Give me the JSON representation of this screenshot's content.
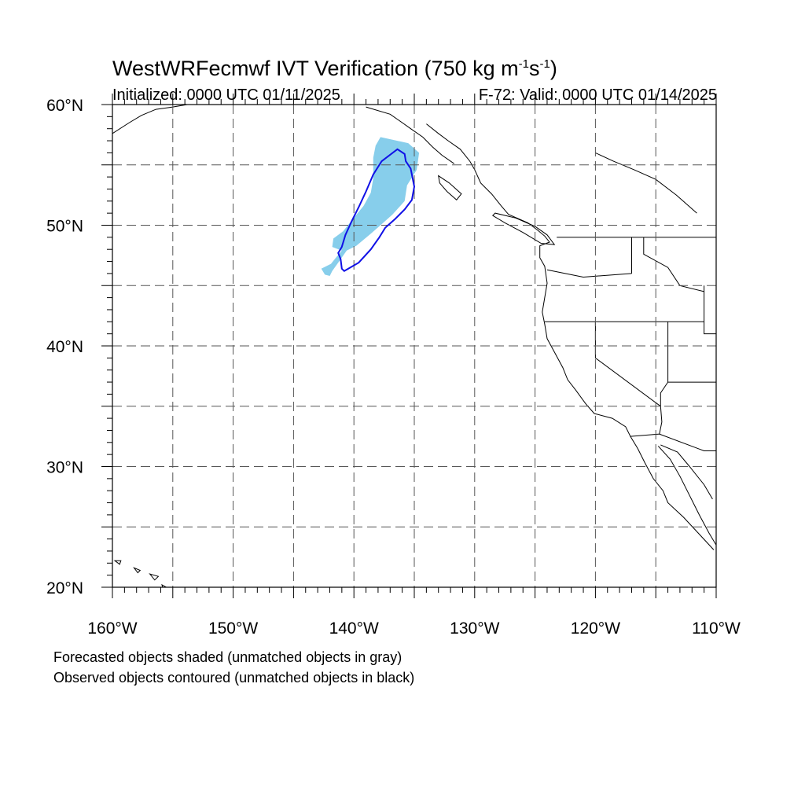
{
  "title": {
    "main": "WestWRFecmwf IVT Verification (750 kg m",
    "sup1": "-1",
    "mid": "s",
    "sup2": "-1",
    "end": ")"
  },
  "subtitle_left": "Initialized: 0000 UTC 01/11/2025",
  "subtitle_right": "F-72: Valid: 0000 UTC 01/14/2025",
  "map": {
    "lon_range": [
      -160,
      -110
    ],
    "lat_range": [
      20,
      60
    ],
    "grid_lon_step": 5,
    "grid_lat_step": 5,
    "grid": "dashed",
    "x_ticks": [
      {
        "value": -160,
        "label": "160°W"
      },
      {
        "value": -150,
        "label": "150°W"
      },
      {
        "value": -140,
        "label": "140°W"
      },
      {
        "value": -130,
        "label": "130°W"
      },
      {
        "value": -120,
        "label": "120°W"
      },
      {
        "value": -110,
        "label": "110°W"
      }
    ],
    "y_ticks": [
      {
        "value": 60,
        "label": "60°N"
      },
      {
        "value": 50,
        "label": "50°N"
      },
      {
        "value": 40,
        "label": "40°N"
      },
      {
        "value": 30,
        "label": "30°N"
      },
      {
        "value": 20,
        "label": "20°N"
      }
    ],
    "forecast_color": "#87ceeb",
    "observed_color": "#1010e6",
    "forecast_object": [
      [
        -137.8,
        57.3
      ],
      [
        -135.5,
        56.8
      ],
      [
        -134.6,
        56.0
      ],
      [
        -134.8,
        54.6
      ],
      [
        -135.6,
        53.3
      ],
      [
        -135.8,
        52.0
      ],
      [
        -136.8,
        50.9
      ],
      [
        -137.8,
        50.0
      ],
      [
        -138.6,
        49.3
      ],
      [
        -139.8,
        48.3
      ],
      [
        -140.6,
        47.9
      ],
      [
        -141.3,
        46.9
      ],
      [
        -141.8,
        46.2
      ],
      [
        -142.0,
        45.8
      ],
      [
        -142.4,
        45.9
      ],
      [
        -142.7,
        46.4
      ],
      [
        -141.9,
        46.8
      ],
      [
        -141.5,
        47.3
      ],
      [
        -141.0,
        47.9
      ],
      [
        -141.8,
        48.2
      ],
      [
        -141.7,
        48.9
      ],
      [
        -140.9,
        49.5
      ],
      [
        -140.1,
        50.5
      ],
      [
        -139.2,
        51.6
      ],
      [
        -138.6,
        52.7
      ],
      [
        -138.4,
        53.9
      ],
      [
        -138.4,
        55.6
      ],
      [
        -138.2,
        56.6
      ]
    ],
    "observed_object": [
      [
        -136.4,
        56.3
      ],
      [
        -135.8,
        55.9
      ],
      [
        -135.7,
        55.3
      ],
      [
        -135.3,
        54.7
      ],
      [
        -135.0,
        53.2
      ],
      [
        -135.2,
        52.1
      ],
      [
        -135.8,
        51.3
      ],
      [
        -136.6,
        50.5
      ],
      [
        -137.4,
        49.8
      ],
      [
        -137.9,
        49.0
      ],
      [
        -138.6,
        48.0
      ],
      [
        -139.6,
        46.9
      ],
      [
        -140.8,
        46.2
      ],
      [
        -141.0,
        46.4
      ],
      [
        -141.1,
        47.2
      ],
      [
        -141.3,
        47.7
      ],
      [
        -141.0,
        48.2
      ],
      [
        -140.7,
        49.2
      ],
      [
        -140.2,
        50.3
      ],
      [
        -139.6,
        51.5
      ],
      [
        -139.0,
        52.8
      ],
      [
        -138.4,
        54.2
      ],
      [
        -137.7,
        55.3
      ]
    ],
    "land_outlines": {
      "west_coast": [
        [
          -134.0,
          58.4
        ],
        [
          -133.0,
          57.6
        ],
        [
          -132.2,
          57.0
        ],
        [
          -131.2,
          56.3
        ],
        [
          -130.4,
          55.3
        ],
        [
          -130.0,
          54.6
        ],
        [
          -129.5,
          53.5
        ],
        [
          -128.6,
          52.6
        ],
        [
          -127.8,
          51.6
        ],
        [
          -127.2,
          50.9
        ],
        [
          -125.6,
          50.2
        ],
        [
          -124.8,
          49.6
        ],
        [
          -124.2,
          49.1
        ],
        [
          -123.8,
          48.6
        ],
        [
          -124.6,
          48.3
        ],
        [
          -124.6,
          47.3
        ],
        [
          -124.2,
          46.6
        ],
        [
          -124.0,
          45.2
        ],
        [
          -124.2,
          44.0
        ],
        [
          -124.4,
          42.8
        ],
        [
          -124.2,
          41.8
        ],
        [
          -124.0,
          40.6
        ],
        [
          -123.4,
          39.5
        ],
        [
          -122.7,
          38.2
        ],
        [
          -122.3,
          37.2
        ],
        [
          -121.6,
          36.3
        ],
        [
          -120.8,
          35.2
        ],
        [
          -120.1,
          34.4
        ],
        [
          -118.6,
          34.0
        ],
        [
          -117.5,
          33.3
        ],
        [
          -117.1,
          32.5
        ],
        [
          -116.5,
          31.5
        ],
        [
          -115.9,
          30.3
        ],
        [
          -115.2,
          29.0
        ],
        [
          -114.4,
          28.0
        ],
        [
          -114.0,
          27.0
        ],
        [
          -112.7,
          25.8
        ],
        [
          -111.4,
          24.4
        ],
        [
          -110.2,
          23.1
        ]
      ],
      "alaska_coast": [
        [
          -160,
          57.6
        ],
        [
          -158.6,
          58.5
        ],
        [
          -157.6,
          59.1
        ],
        [
          -156.4,
          59.6
        ],
        [
          -155.0,
          59.8
        ],
        [
          -153.8,
          60.0
        ]
      ],
      "southeast_alaska": [
        [
          -139.0,
          59.8
        ],
        [
          -137.0,
          59.2
        ],
        [
          -136.0,
          58.5
        ],
        [
          -135.3,
          58.0
        ],
        [
          -134.3,
          57.3
        ],
        [
          -133.5,
          56.5
        ],
        [
          -132.7,
          55.8
        ],
        [
          -131.7,
          55.1
        ]
      ],
      "baja_gulf_side": [
        [
          -114.8,
          31.7
        ],
        [
          -113.8,
          30.6
        ],
        [
          -113.0,
          29.2
        ],
        [
          -112.2,
          27.6
        ],
        [
          -111.4,
          26.0
        ],
        [
          -110.6,
          24.5
        ],
        [
          -110.0,
          23.5
        ]
      ],
      "mainland_gulf": [
        [
          -114.6,
          31.8
        ],
        [
          -113.2,
          31.2
        ],
        [
          -112.2,
          30.0
        ],
        [
          -111.0,
          28.5
        ],
        [
          -110.3,
          27.3
        ]
      ],
      "vancouver_island": [
        [
          -128.5,
          50.8
        ],
        [
          -127.5,
          50.2
        ],
        [
          -126.0,
          49.4
        ],
        [
          -124.5,
          48.5
        ],
        [
          -123.4,
          48.4
        ],
        [
          -124.0,
          49.2
        ],
        [
          -125.0,
          49.9
        ],
        [
          -126.6,
          50.6
        ],
        [
          -128.3,
          51.0
        ]
      ],
      "haida_gwaii": [
        [
          -133.0,
          54.1
        ],
        [
          -132.1,
          53.5
        ],
        [
          -131.1,
          52.6
        ],
        [
          -131.5,
          52.1
        ],
        [
          -132.3,
          52.8
        ],
        [
          -132.9,
          53.5
        ]
      ],
      "hawaii_1": [
        [
          -159.8,
          22.2
        ],
        [
          -159.3,
          22.2
        ],
        [
          -159.4,
          21.9
        ]
      ],
      "hawaii_2": [
        [
          -158.2,
          21.6
        ],
        [
          -157.7,
          21.4
        ],
        [
          -157.9,
          21.2
        ]
      ],
      "hawaii_3": [
        [
          -156.9,
          21.1
        ],
        [
          -156.2,
          20.9
        ],
        [
          -156.5,
          20.6
        ]
      ],
      "hawaii_4": [
        [
          -155.9,
          20.2
        ],
        [
          -155.0,
          19.7
        ],
        [
          -155.6,
          19.1
        ]
      ],
      "canada_us_border": [
        [
          -123.2,
          49.0
        ],
        [
          -110,
          49.0
        ]
      ],
      "wa_or_border": [
        [
          -124.0,
          46.3
        ],
        [
          -121.0,
          45.7
        ],
        [
          -117.0,
          46.0
        ]
      ],
      "or_ca_border": [
        [
          -124.2,
          42.0
        ],
        [
          -111.0,
          42.0
        ]
      ],
      "ca_nv_border": [
        [
          -120.0,
          42.0
        ],
        [
          -120.0,
          39.0
        ],
        [
          -114.6,
          35.0
        ]
      ],
      "id_border": [
        [
          -117.0,
          46.0
        ],
        [
          -117.0,
          49.0
        ]
      ],
      "id_mt_border": [
        [
          -116.0,
          49.0
        ],
        [
          -116.0,
          47.6
        ],
        [
          -114.0,
          46.5
        ],
        [
          -113.0,
          45.0
        ],
        [
          -111.0,
          44.5
        ]
      ],
      "nv_ut_border": [
        [
          -114.0,
          42.0
        ],
        [
          -114.0,
          37.0
        ]
      ],
      "az_nv": [
        [
          -114.0,
          37.0
        ],
        [
          -114.6,
          36.1
        ],
        [
          -114.6,
          35.0
        ]
      ],
      "ut_az_border": [
        [
          -114.0,
          37.0
        ],
        [
          -110,
          37.0
        ]
      ],
      "az_ca": [
        [
          -114.6,
          35.0
        ],
        [
          -114.5,
          33.7
        ],
        [
          -114.7,
          32.7
        ]
      ],
      "us_mexico_border": [
        [
          -117.1,
          32.5
        ],
        [
          -114.7,
          32.7
        ],
        [
          -111.0,
          31.3
        ],
        [
          -110,
          31.3
        ]
      ],
      "wy_border": [
        [
          -111.0,
          45.0
        ],
        [
          -111.0,
          41.0
        ],
        [
          -110,
          41.0
        ]
      ],
      "canada_interior": [
        [
          -120,
          56.0
        ],
        [
          -118.5,
          55.3
        ],
        [
          -116.8,
          54.6
        ],
        [
          -115.0,
          53.8
        ],
        [
          -113.3,
          52.5
        ],
        [
          -111.6,
          51.0
        ]
      ]
    }
  },
  "captions": [
    "Forecasted objects shaded (unmatched objects in gray)",
    "Observed objects contoured (unmatched objects in black)"
  ]
}
